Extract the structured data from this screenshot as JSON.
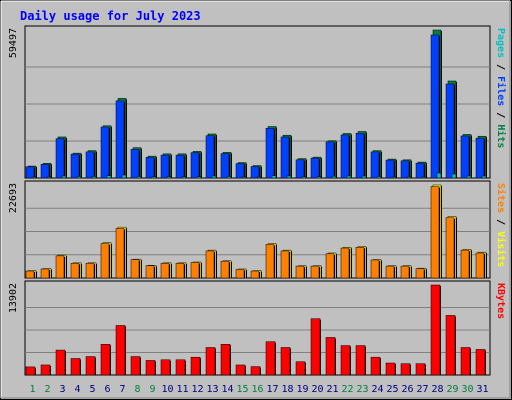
{
  "colors": {
    "background": "#c0c0c0",
    "plot_bg": "#c0c0c0",
    "grid": "#808080",
    "axis": "#000000",
    "title": "#0000ff",
    "pages": "#00c0c0",
    "files": "#0040ff",
    "hits": "#008040",
    "sites": "#ff8000",
    "visits": "#ffff00",
    "kbytes": "#ff0000",
    "weekend_label": "#008040",
    "weekday_label": "#000080"
  },
  "chart_data": {
    "type": "bar",
    "title": "Daily usage for July 2023",
    "categories": [
      "1",
      "2",
      "3",
      "4",
      "5",
      "6",
      "7",
      "8",
      "9",
      "10",
      "11",
      "12",
      "13",
      "14",
      "15",
      "16",
      "17",
      "18",
      "19",
      "20",
      "21",
      "22",
      "23",
      "24",
      "25",
      "26",
      "27",
      "28",
      "29",
      "30",
      "31"
    ],
    "weekend_days": [
      "1",
      "2",
      "8",
      "9",
      "15",
      "16",
      "22",
      "23",
      "29",
      "30"
    ],
    "panels": [
      {
        "id": "top",
        "max_label": "59497",
        "ymax": 59497,
        "legend": [
          {
            "text": "Pages",
            "color_key": "pages"
          },
          {
            "text": " / ",
            "color_key": "axis"
          },
          {
            "text": "Files",
            "color_key": "files"
          },
          {
            "text": " / ",
            "color_key": "axis"
          },
          {
            "text": "Hits",
            "color_key": "hits"
          }
        ],
        "series": [
          {
            "name": "Hits",
            "color_key": "hits",
            "values": [
              4800,
              5900,
              16500,
              10000,
              11000,
              21000,
              32000,
              12200,
              8800,
              9700,
              9700,
              10700,
              17700,
              10300,
              6200,
              5000,
              20700,
              17200,
              7800,
              8400,
              15000,
              17900,
              18700,
              11000,
              7600,
              7300,
              6400,
              59497,
              39000,
              17500,
              16800
            ]
          },
          {
            "name": "Files",
            "color_key": "files",
            "values": [
              4500,
              5500,
              15800,
              9600,
              10500,
              20500,
              31000,
              11500,
              8300,
              9200,
              9200,
              10200,
              17000,
              9800,
              5800,
              4600,
              20000,
              16500,
              7300,
              8000,
              14500,
              17300,
              18000,
              10500,
              7200,
              6900,
              6000,
              57500,
              37800,
              16900,
              16000
            ]
          },
          {
            "name": "Pages",
            "color_key": "pages",
            "values": [
              300,
              300,
              800,
              600,
              600,
              900,
              1200,
              600,
              500,
              500,
              500,
              500,
              800,
              600,
              400,
              300,
              900,
              800,
              500,
              500,
              700,
              800,
              800,
              600,
              400,
              400,
              400,
              2000,
              1600,
              800,
              800
            ]
          }
        ]
      },
      {
        "id": "middle",
        "max_label": "22693",
        "ymax": 22693,
        "legend": [
          {
            "text": "Sites",
            "color_key": "sites"
          },
          {
            "text": " / ",
            "color_key": "axis"
          },
          {
            "text": "Visits",
            "color_key": "visits"
          }
        ],
        "series": [
          {
            "name": "Visits",
            "color_key": "visits",
            "values": [
              1800,
              2300,
              5600,
              3700,
              3700,
              8600,
              12400,
              4600,
              3100,
              3700,
              3700,
              3900,
              6800,
              4200,
              2200,
              1800,
              8400,
              6800,
              3000,
              3000,
              6100,
              7500,
              7700,
              4500,
              3000,
              3000,
              2400,
              22693,
              15000,
              7000,
              6300
            ]
          },
          {
            "name": "Sites",
            "color_key": "sites",
            "values": [
              1700,
              2200,
              5400,
              3600,
              3600,
              8400,
              12100,
              4500,
              3000,
              3600,
              3600,
              3800,
              6600,
              4100,
              2100,
              1700,
              8200,
              6600,
              2900,
              2900,
              5900,
              7300,
              7500,
              4400,
              2900,
              2900,
              2300,
              22300,
              14700,
              6800,
              6100
            ]
          }
        ]
      },
      {
        "id": "bottom",
        "max_label": "13902",
        "ymax": 13902,
        "legend": [
          {
            "text": "KBytes",
            "color_key": "kbytes"
          }
        ],
        "series": [
          {
            "name": "KBytes",
            "color_key": "kbytes",
            "values": [
              1250,
              1550,
              3850,
              2550,
              2850,
              4750,
              7650,
              2850,
              2250,
              2350,
              2350,
              2750,
              4250,
              4750,
              1550,
              1300,
              5150,
              4250,
              2050,
              8700,
              5800,
              4550,
              4550,
              2750,
              1850,
              1750,
              1750,
              13902,
              9200,
              4250,
              3950
            ]
          }
        ]
      }
    ]
  }
}
